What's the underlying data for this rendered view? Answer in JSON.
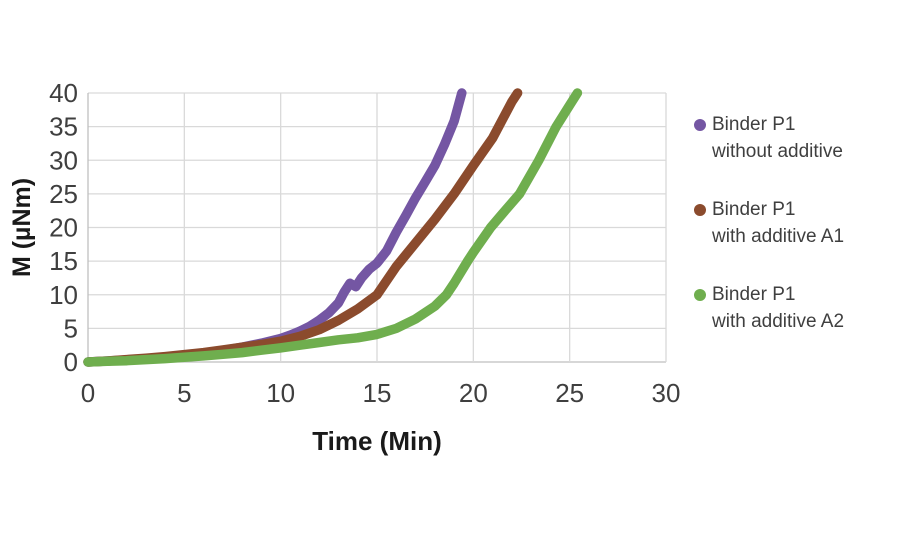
{
  "chart_data": {
    "type": "line",
    "title": "",
    "xlabel": "Time (Min)",
    "ylabel": "M (µNm)",
    "xlim": [
      0,
      30
    ],
    "ylim": [
      0,
      40
    ],
    "x_ticks": [
      0,
      5,
      10,
      15,
      20,
      25,
      30
    ],
    "y_ticks": [
      0,
      5,
      10,
      15,
      20,
      25,
      30,
      35,
      40
    ],
    "grid": true,
    "legend_position": "right",
    "series": [
      {
        "name": "Binder P1 without additive",
        "label_lines": [
          "Binder P1",
          "without additive"
        ],
        "color": "#7456A3",
        "points": [
          [
            0,
            0
          ],
          [
            1,
            0.15
          ],
          [
            2,
            0.3
          ],
          [
            3,
            0.5
          ],
          [
            4,
            0.7
          ],
          [
            5,
            0.95
          ],
          [
            6,
            1.3
          ],
          [
            7,
            1.7
          ],
          [
            8,
            2.2
          ],
          [
            9,
            2.8
          ],
          [
            10,
            3.5
          ],
          [
            10.5,
            4.0
          ],
          [
            11,
            4.6
          ],
          [
            11.5,
            5.3
          ],
          [
            12,
            6.2
          ],
          [
            12.5,
            7.3
          ],
          [
            13,
            8.8
          ],
          [
            13.3,
            10.4
          ],
          [
            13.6,
            11.7
          ],
          [
            13.9,
            11.2
          ],
          [
            14.2,
            12.5
          ],
          [
            14.6,
            13.8
          ],
          [
            15,
            14.7
          ],
          [
            15.5,
            16.5
          ],
          [
            16,
            19.3
          ],
          [
            16.5,
            21.8
          ],
          [
            17,
            24.4
          ],
          [
            17.5,
            26.8
          ],
          [
            18,
            29.2
          ],
          [
            18.5,
            32.3
          ],
          [
            19,
            35.8
          ],
          [
            19.4,
            40
          ]
        ]
      },
      {
        "name": "Binder P1 with additive A1",
        "label_lines": [
          "Binder P1",
          "with additive A1"
        ],
        "color": "#8B4B2D",
        "points": [
          [
            0,
            0
          ],
          [
            1,
            0.15
          ],
          [
            2,
            0.35
          ],
          [
            3,
            0.55
          ],
          [
            4,
            0.8
          ],
          [
            5,
            1.1
          ],
          [
            6,
            1.4
          ],
          [
            7,
            1.8
          ],
          [
            8,
            2.2
          ],
          [
            9,
            2.6
          ],
          [
            10,
            3.1
          ],
          [
            11,
            3.8
          ],
          [
            12,
            4.8
          ],
          [
            13,
            6.2
          ],
          [
            14,
            7.9
          ],
          [
            15,
            10
          ],
          [
            16,
            14.2
          ],
          [
            17,
            17.7
          ],
          [
            18,
            21.2
          ],
          [
            19,
            25
          ],
          [
            20,
            29.2
          ],
          [
            21,
            33.3
          ],
          [
            22,
            38.7
          ],
          [
            22.3,
            40
          ]
        ]
      },
      {
        "name": "Binder P1 with additive A2",
        "label_lines": [
          "Binder P1",
          "with additive A2"
        ],
        "color": "#6FAE4E",
        "points": [
          [
            0,
            0
          ],
          [
            1,
            0.1
          ],
          [
            2,
            0.2
          ],
          [
            3,
            0.35
          ],
          [
            4,
            0.5
          ],
          [
            5,
            0.7
          ],
          [
            6,
            0.9
          ],
          [
            7,
            1.15
          ],
          [
            8,
            1.4
          ],
          [
            9,
            1.75
          ],
          [
            10,
            2.1
          ],
          [
            11,
            2.5
          ],
          [
            12,
            2.9
          ],
          [
            13,
            3.3
          ],
          [
            14,
            3.6
          ],
          [
            15,
            4.1
          ],
          [
            16,
            5.0
          ],
          [
            17,
            6.4
          ],
          [
            18,
            8.3
          ],
          [
            18.6,
            10
          ],
          [
            19,
            11.7
          ],
          [
            19.7,
            15
          ],
          [
            20,
            16.3
          ],
          [
            20.9,
            20
          ],
          [
            21.5,
            22
          ],
          [
            22.4,
            25
          ],
          [
            23.4,
            30
          ],
          [
            24.3,
            35
          ],
          [
            25,
            38.2
          ],
          [
            25.4,
            40
          ]
        ]
      }
    ]
  },
  "colors": {
    "background": "#FFFFFF",
    "grid": "#D9D9D9",
    "axis": "#BFBFBF",
    "tick_text": "#3F3F3F",
    "axis_title_text": "#1A1A1A"
  }
}
